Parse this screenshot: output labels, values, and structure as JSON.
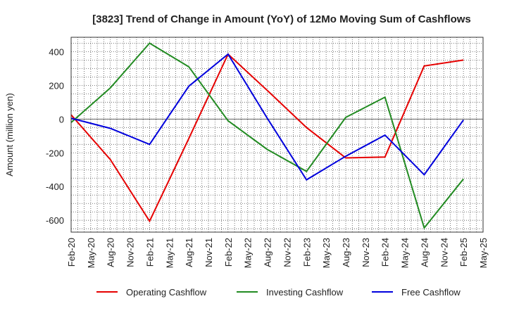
{
  "chart_data": {
    "type": "line",
    "title": "[3823]  Trend of Change in Amount (YoY) of 12Mo Moving Sum of Cashflows",
    "xlabel": "",
    "ylabel": "Amount (million yen)",
    "ylim": [
      -670,
      485
    ],
    "yticks": [
      400,
      200,
      0,
      -200,
      -400,
      -600
    ],
    "ytick_labels": [
      "400",
      "200",
      "0",
      "-200",
      "-400",
      "-600"
    ],
    "xticks": [
      "Feb-20",
      "May-20",
      "Aug-20",
      "Nov-20",
      "Feb-21",
      "May-21",
      "Aug-21",
      "Nov-21",
      "Feb-22",
      "May-22",
      "Aug-22",
      "Nov-22",
      "Feb-23",
      "May-23",
      "Aug-23",
      "Nov-23",
      "Feb-24",
      "May-24",
      "Aug-24",
      "Nov-24",
      "Feb-25",
      "May-25"
    ],
    "grid": true,
    "legend_position": "bottom",
    "series": [
      {
        "name": "Operating Cashflow",
        "color": "#e60000",
        "points": [
          {
            "x": "Feb-20",
            "y": 25
          },
          {
            "x": "Aug-20",
            "y": -240
          },
          {
            "x": "Feb-21",
            "y": -605
          },
          {
            "x": "Aug-21",
            "y": -115
          },
          {
            "x": "Feb-22",
            "y": 385
          },
          {
            "x": "Aug-22",
            "y": 170
          },
          {
            "x": "Feb-23",
            "y": -50
          },
          {
            "x": "Aug-23",
            "y": -230
          },
          {
            "x": "Feb-24",
            "y": -225
          },
          {
            "x": "Aug-24",
            "y": 315
          },
          {
            "x": "Feb-25",
            "y": 350
          }
        ]
      },
      {
        "name": "Investing Cashflow",
        "color": "#228b22",
        "points": [
          {
            "x": "Feb-20",
            "y": -20
          },
          {
            "x": "Aug-20",
            "y": 185
          },
          {
            "x": "Feb-21",
            "y": 450
          },
          {
            "x": "Aug-21",
            "y": 310
          },
          {
            "x": "Feb-22",
            "y": -10
          },
          {
            "x": "Aug-22",
            "y": -180
          },
          {
            "x": "Feb-23",
            "y": -310
          },
          {
            "x": "Aug-23",
            "y": 10
          },
          {
            "x": "Feb-24",
            "y": 130
          },
          {
            "x": "Aug-24",
            "y": -645
          },
          {
            "x": "Feb-25",
            "y": -355
          }
        ]
      },
      {
        "name": "Free Cashflow",
        "color": "#0000dd",
        "points": [
          {
            "x": "Feb-20",
            "y": 5
          },
          {
            "x": "Aug-20",
            "y": -55
          },
          {
            "x": "Feb-21",
            "y": -150
          },
          {
            "x": "Aug-21",
            "y": 195
          },
          {
            "x": "Feb-22",
            "y": 385
          },
          {
            "x": "Aug-22",
            "y": 5
          },
          {
            "x": "Feb-23",
            "y": -360
          },
          {
            "x": "Aug-23",
            "y": -220
          },
          {
            "x": "Feb-24",
            "y": -95
          },
          {
            "x": "Aug-24",
            "y": -330
          },
          {
            "x": "Feb-25",
            "y": -5
          }
        ]
      }
    ]
  }
}
